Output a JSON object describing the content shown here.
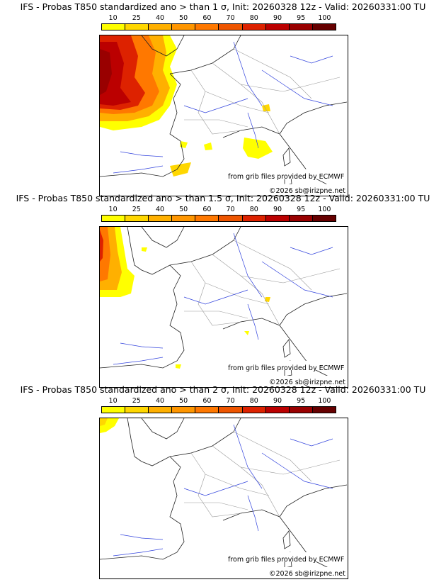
{
  "colorbar": {
    "ticks": [
      "10",
      "25",
      "40",
      "50",
      "60",
      "70",
      "80",
      "90",
      "95",
      "100"
    ],
    "colors": [
      "#ffff00",
      "#ffd700",
      "#ffb000",
      "#ff9600",
      "#ff7800",
      "#ee5500",
      "#dd2200",
      "#bb0000",
      "#990000",
      "#660000"
    ]
  },
  "panels": [
    {
      "title": "IFS - Probas T850  standardized ano > than 1 σ, Init: 20260328 12z - Valid: 20260331:00 TU",
      "credit_grib": "from grib files provided by ECMWF",
      "credit_copy": "©2026 sb@irizpne.net"
    },
    {
      "title": "IFS - Probas T850  standardized ano > than 1.5 σ, Init: 20260328 12z - Valid: 20260331:00 TU",
      "credit_grib": "from grib files provided by ECMWF",
      "credit_copy": "©2026 sb@irizpne.net"
    },
    {
      "title": "IFS - Probas T850  standardized ano > than 2 σ, Init: 20260328 12z - Valid: 20260331:00 TU",
      "credit_grib": "from grib files provided by ECMWF",
      "credit_copy": "©2026 sb@irizpne.net"
    }
  ]
}
